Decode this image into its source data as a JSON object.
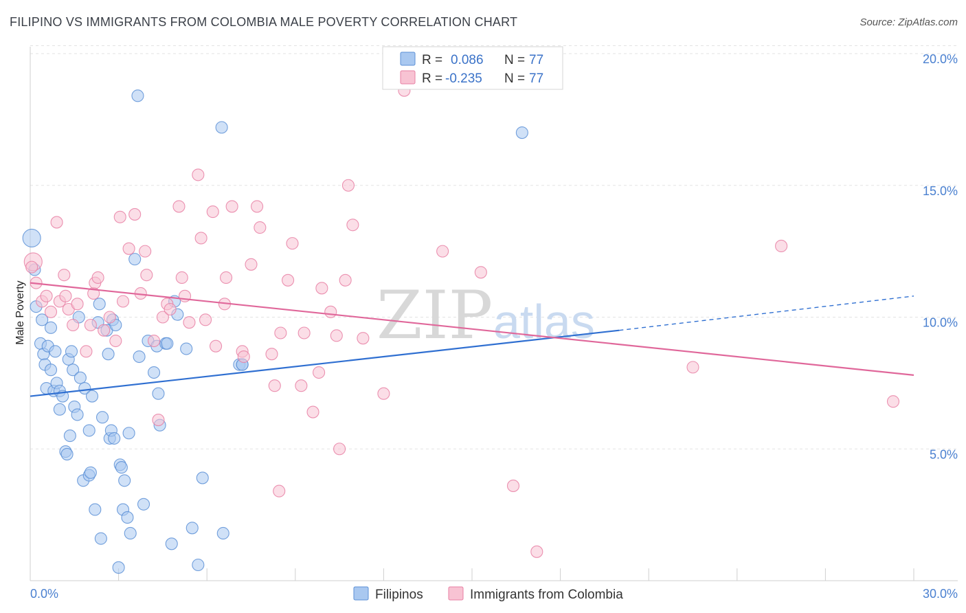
{
  "title": "FILIPINO VS IMMIGRANTS FROM COLOMBIA MALE POVERTY CORRELATION CHART",
  "source": "Source: ZipAtlas.com",
  "watermark": {
    "zip": "ZIP",
    "atlas": "atlas"
  },
  "colors": {
    "blue_fill": "#a9c8f0",
    "blue_stroke": "#5b8fd6",
    "blue_line": "#2f6fd1",
    "pink_fill": "#f8c3d3",
    "pink_stroke": "#e77fa3",
    "pink_line": "#e0679a",
    "tick_label": "#4a80d0",
    "grid": "#e3e3e3"
  },
  "legend_top": {
    "rows": [
      {
        "r_label": "R =",
        "r_value": "0.086",
        "n_label": "N =",
        "n_value": "77",
        "series": "blue"
      },
      {
        "r_label": "R =",
        "r_value": "-0.235",
        "n_label": "N =",
        "n_value": "77",
        "series": "pink"
      }
    ]
  },
  "legend_bottom": [
    {
      "label": "Filipinos",
      "series": "blue"
    },
    {
      "label": "Immigrants from Colombia",
      "series": "pink"
    }
  ],
  "chart_data": {
    "type": "scatter",
    "xlabel": "",
    "ylabel": "Male Poverty",
    "xlim": [
      0,
      30
    ],
    "ylim": [
      0,
      21
    ],
    "x_tick_labels": [
      "0.0%",
      "30.0%"
    ],
    "y_ticks": [
      5,
      10,
      15,
      20
    ],
    "y_tick_labels": [
      "5.0%",
      "10.0%",
      "15.0%",
      "20.0%"
    ],
    "grid": true,
    "legend_position": "top-center",
    "series": [
      {
        "name": "Filipinos",
        "color": "blue",
        "trend": {
          "x0": 0,
          "y0": 7.0,
          "x1": 20,
          "y1": 9.5,
          "dash_to_x": 30,
          "dash_to_y": 10.8
        },
        "points": [
          [
            0.05,
            13.0
          ],
          [
            0.15,
            11.8
          ],
          [
            0.2,
            10.4
          ],
          [
            0.35,
            9.0
          ],
          [
            0.4,
            9.9
          ],
          [
            0.45,
            8.6
          ],
          [
            0.5,
            8.2
          ],
          [
            0.55,
            7.3
          ],
          [
            0.6,
            8.9
          ],
          [
            0.7,
            9.6
          ],
          [
            0.7,
            8.0
          ],
          [
            0.8,
            7.2
          ],
          [
            0.85,
            8.7
          ],
          [
            0.9,
            7.5
          ],
          [
            1.0,
            7.2
          ],
          [
            1.0,
            6.5
          ],
          [
            1.1,
            7.0
          ],
          [
            1.2,
            4.9
          ],
          [
            1.25,
            4.8
          ],
          [
            1.3,
            8.4
          ],
          [
            1.35,
            5.5
          ],
          [
            1.4,
            8.7
          ],
          [
            1.45,
            8.0
          ],
          [
            1.5,
            6.6
          ],
          [
            1.6,
            6.3
          ],
          [
            1.65,
            10.0
          ],
          [
            1.7,
            7.7
          ],
          [
            1.8,
            3.8
          ],
          [
            1.85,
            7.3
          ],
          [
            2.0,
            5.7
          ],
          [
            2.0,
            4.0
          ],
          [
            2.05,
            4.1
          ],
          [
            2.1,
            7.0
          ],
          [
            2.2,
            2.7
          ],
          [
            2.3,
            9.8
          ],
          [
            2.35,
            10.5
          ],
          [
            2.4,
            1.6
          ],
          [
            2.45,
            6.2
          ],
          [
            2.6,
            9.5
          ],
          [
            2.65,
            8.6
          ],
          [
            2.7,
            5.4
          ],
          [
            2.75,
            5.7
          ],
          [
            2.8,
            9.9
          ],
          [
            2.85,
            5.4
          ],
          [
            3.0,
            0.5
          ],
          [
            3.05,
            4.4
          ],
          [
            3.1,
            4.3
          ],
          [
            3.15,
            2.7
          ],
          [
            3.2,
            3.8
          ],
          [
            3.3,
            2.4
          ],
          [
            3.35,
            5.6
          ],
          [
            3.4,
            1.8
          ],
          [
            3.55,
            12.2
          ],
          [
            3.65,
            18.4
          ],
          [
            3.7,
            8.5
          ],
          [
            3.85,
            2.9
          ],
          [
            4.0,
            9.1
          ],
          [
            4.2,
            7.9
          ],
          [
            4.3,
            8.9
          ],
          [
            4.35,
            7.1
          ],
          [
            4.4,
            5.9
          ],
          [
            4.6,
            9.0
          ],
          [
            4.8,
            1.4
          ],
          [
            4.9,
            10.6
          ],
          [
            5.0,
            10.1
          ],
          [
            5.3,
            8.8
          ],
          [
            5.5,
            2.0
          ],
          [
            5.7,
            0.6
          ],
          [
            5.85,
            3.9
          ],
          [
            6.5,
            17.2
          ],
          [
            6.55,
            1.8
          ],
          [
            7.1,
            8.2
          ],
          [
            7.2,
            8.2
          ],
          [
            16.7,
            17.0
          ],
          [
            7.2,
            8.2
          ],
          [
            4.65,
            9.0
          ],
          [
            2.9,
            9.7
          ]
        ]
      },
      {
        "name": "Immigrants from Colombia",
        "color": "pink",
        "trend": {
          "x0": 0,
          "y0": 11.3,
          "x1": 30,
          "y1": 7.8
        },
        "points": [
          [
            0.1,
            12.1
          ],
          [
            0.2,
            11.3
          ],
          [
            0.4,
            10.6
          ],
          [
            0.55,
            10.8
          ],
          [
            0.7,
            10.2
          ],
          [
            0.9,
            13.6
          ],
          [
            1.0,
            10.6
          ],
          [
            1.15,
            11.6
          ],
          [
            1.3,
            10.3
          ],
          [
            1.45,
            9.7
          ],
          [
            1.6,
            10.5
          ],
          [
            1.9,
            8.7
          ],
          [
            2.05,
            9.7
          ],
          [
            2.15,
            10.9
          ],
          [
            2.2,
            11.3
          ],
          [
            2.3,
            11.5
          ],
          [
            2.5,
            9.5
          ],
          [
            2.7,
            10.0
          ],
          [
            2.9,
            9.1
          ],
          [
            3.05,
            13.8
          ],
          [
            3.15,
            10.6
          ],
          [
            3.35,
            12.6
          ],
          [
            3.55,
            13.9
          ],
          [
            3.75,
            10.9
          ],
          [
            3.9,
            12.5
          ],
          [
            3.95,
            11.6
          ],
          [
            4.2,
            9.1
          ],
          [
            4.35,
            6.1
          ],
          [
            4.5,
            10.0
          ],
          [
            4.65,
            10.5
          ],
          [
            4.75,
            10.3
          ],
          [
            5.05,
            14.2
          ],
          [
            5.15,
            11.5
          ],
          [
            5.25,
            10.8
          ],
          [
            5.4,
            9.8
          ],
          [
            5.7,
            15.4
          ],
          [
            5.8,
            13.0
          ],
          [
            5.95,
            9.9
          ],
          [
            6.2,
            14.0
          ],
          [
            6.3,
            8.9
          ],
          [
            6.6,
            10.5
          ],
          [
            6.65,
            11.5
          ],
          [
            6.85,
            14.2
          ],
          [
            7.2,
            8.7
          ],
          [
            7.25,
            8.5
          ],
          [
            7.5,
            12.0
          ],
          [
            7.7,
            14.2
          ],
          [
            7.8,
            13.4
          ],
          [
            8.2,
            8.6
          ],
          [
            8.3,
            7.4
          ],
          [
            8.45,
            3.4
          ],
          [
            8.5,
            9.4
          ],
          [
            8.75,
            11.4
          ],
          [
            8.9,
            12.8
          ],
          [
            9.2,
            7.4
          ],
          [
            9.3,
            9.4
          ],
          [
            9.6,
            6.4
          ],
          [
            9.8,
            7.9
          ],
          [
            9.9,
            11.1
          ],
          [
            10.2,
            10.2
          ],
          [
            10.4,
            9.3
          ],
          [
            10.5,
            5.0
          ],
          [
            10.7,
            11.4
          ],
          [
            10.8,
            15.0
          ],
          [
            10.95,
            13.5
          ],
          [
            11.3,
            9.2
          ],
          [
            12.0,
            7.1
          ],
          [
            12.7,
            18.6
          ],
          [
            14.0,
            12.5
          ],
          [
            15.3,
            11.7
          ],
          [
            16.4,
            3.6
          ],
          [
            17.2,
            1.1
          ],
          [
            22.5,
            8.1
          ],
          [
            25.5,
            12.7
          ],
          [
            29.3,
            6.8
          ],
          [
            0.05,
            11.9
          ],
          [
            1.2,
            10.8
          ]
        ]
      }
    ]
  }
}
